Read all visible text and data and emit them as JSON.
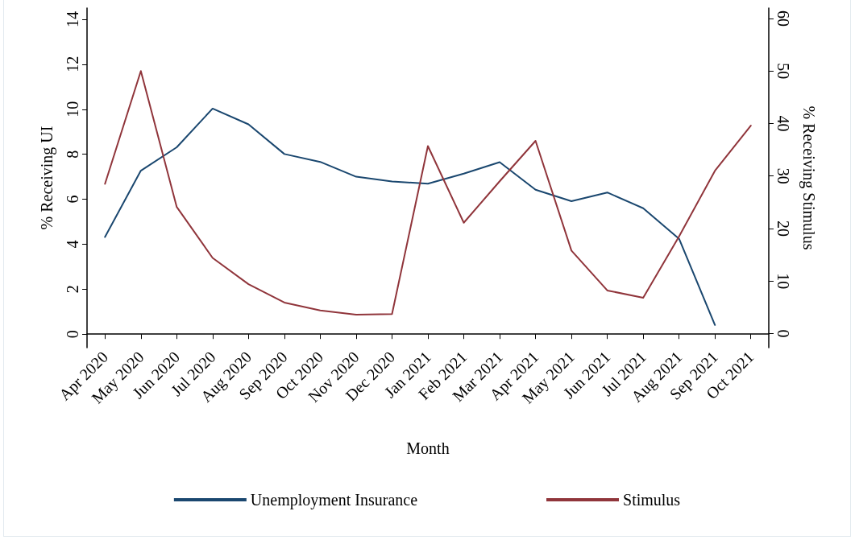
{
  "chart_data": {
    "type": "line",
    "xlabel": "Month",
    "ylabel": "% Receiving UI",
    "y2label": "% Receiving Stimulus",
    "categories": [
      "Apr 2020",
      "May 2020",
      "Jun 2020",
      "Jul 2020",
      "Aug 2020",
      "Sep 2020",
      "Oct 2020",
      "Nov 2020",
      "Dec 2020",
      "Jan 2021",
      "Feb 2021",
      "Mar 2021",
      "Apr 2021",
      "May 2021",
      "Jun 2021",
      "Jul 2021",
      "Aug 2021",
      "Sep 2021",
      "Oct 2021"
    ],
    "series": [
      {
        "name": "Unemployment Insurance",
        "color": "#1a476f",
        "values": [
          4.32,
          7.27,
          8.31,
          10.03,
          9.33,
          8.01,
          7.66,
          7.0,
          6.79,
          6.69,
          7.14,
          7.65,
          6.42,
          5.91,
          6.3,
          5.6,
          4.24,
          0.41,
          null
        ]
      },
      {
        "name": "Stimulus",
        "color": "#90353b",
        "axis": "y2",
        "values": [
          28.5,
          50.0,
          24.1,
          14.4,
          9.4,
          5.9,
          4.4,
          3.6,
          3.7,
          35.7,
          21.1,
          29.0,
          36.7,
          15.8,
          8.2,
          6.8,
          18.5,
          31.0,
          39.6
        ]
      }
    ],
    "ylim": [
      -0.6,
      14.5
    ],
    "yticks": [
      0,
      2,
      4,
      6,
      8,
      10,
      12,
      14
    ],
    "y2lim": [
      -2.7,
      62
    ],
    "y2ticks": [
      0,
      10,
      20,
      30,
      40,
      50,
      60
    ],
    "grid": false,
    "legend": "bottom",
    "marker": "none",
    "line_style": "solid"
  }
}
